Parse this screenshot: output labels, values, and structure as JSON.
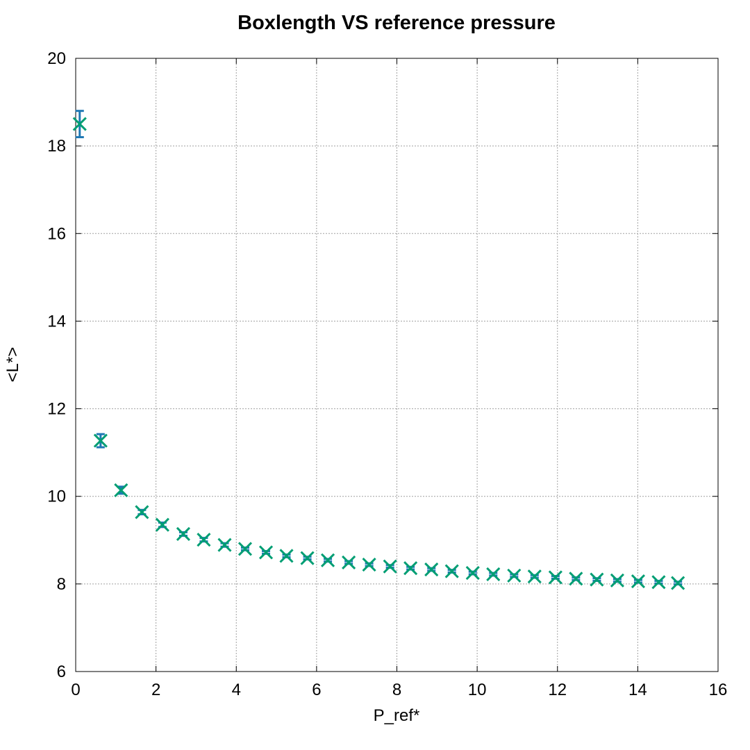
{
  "chart_data": {
    "type": "scatter",
    "title": "Boxlength VS reference pressure",
    "xlabel": "P_ref*",
    "ylabel": "<L*>",
    "xlim": [
      0,
      16
    ],
    "ylim": [
      6,
      20
    ],
    "xticks": [
      "0",
      "2",
      "4",
      "6",
      "8",
      "10",
      "12",
      "14",
      "16"
    ],
    "yticks": [
      "6",
      "8",
      "10",
      "12",
      "14",
      "16",
      "18",
      "20"
    ],
    "grid": true,
    "legend": "none",
    "colors": {
      "errorbar": "#1f78b4",
      "marker": "#009e73"
    },
    "series": [
      {
        "marker": "x",
        "error_bars": true,
        "points": [
          {
            "x": 0.1,
            "y": 18.5,
            "err": 0.3
          },
          {
            "x": 0.62,
            "y": 11.27,
            "err": 0.15
          },
          {
            "x": 1.13,
            "y": 10.14,
            "err": 0.08
          },
          {
            "x": 1.65,
            "y": 9.64,
            "err": 0.05
          },
          {
            "x": 2.16,
            "y": 9.35,
            "err": 0.05
          },
          {
            "x": 2.68,
            "y": 9.14,
            "err": 0.04
          },
          {
            "x": 3.19,
            "y": 9.01,
            "err": 0.04
          },
          {
            "x": 3.71,
            "y": 8.89,
            "err": 0.04
          },
          {
            "x": 4.22,
            "y": 8.8,
            "err": 0.03
          },
          {
            "x": 4.74,
            "y": 8.72,
            "err": 0.03
          },
          {
            "x": 5.25,
            "y": 8.64,
            "err": 0.03
          },
          {
            "x": 5.77,
            "y": 8.59,
            "err": 0.03
          },
          {
            "x": 6.28,
            "y": 8.54,
            "err": 0.03
          },
          {
            "x": 6.8,
            "y": 8.49,
            "err": 0.03
          },
          {
            "x": 7.31,
            "y": 8.44,
            "err": 0.03
          },
          {
            "x": 7.83,
            "y": 8.4,
            "err": 0.03
          },
          {
            "x": 8.34,
            "y": 8.36,
            "err": 0.03
          },
          {
            "x": 8.86,
            "y": 8.33,
            "err": 0.03
          },
          {
            "x": 9.37,
            "y": 8.29,
            "err": 0.03
          },
          {
            "x": 9.89,
            "y": 8.25,
            "err": 0.03
          },
          {
            "x": 10.4,
            "y": 8.22,
            "err": 0.03
          },
          {
            "x": 10.92,
            "y": 8.19,
            "err": 0.03
          },
          {
            "x": 11.43,
            "y": 8.17,
            "err": 0.03
          },
          {
            "x": 11.95,
            "y": 8.15,
            "err": 0.03
          },
          {
            "x": 12.46,
            "y": 8.12,
            "err": 0.03
          },
          {
            "x": 12.98,
            "y": 8.1,
            "err": 0.03
          },
          {
            "x": 13.49,
            "y": 8.08,
            "err": 0.03
          },
          {
            "x": 14.01,
            "y": 8.06,
            "err": 0.03
          },
          {
            "x": 14.52,
            "y": 8.04,
            "err": 0.03
          },
          {
            "x": 15.0,
            "y": 8.02,
            "err": 0.03
          }
        ]
      }
    ]
  }
}
